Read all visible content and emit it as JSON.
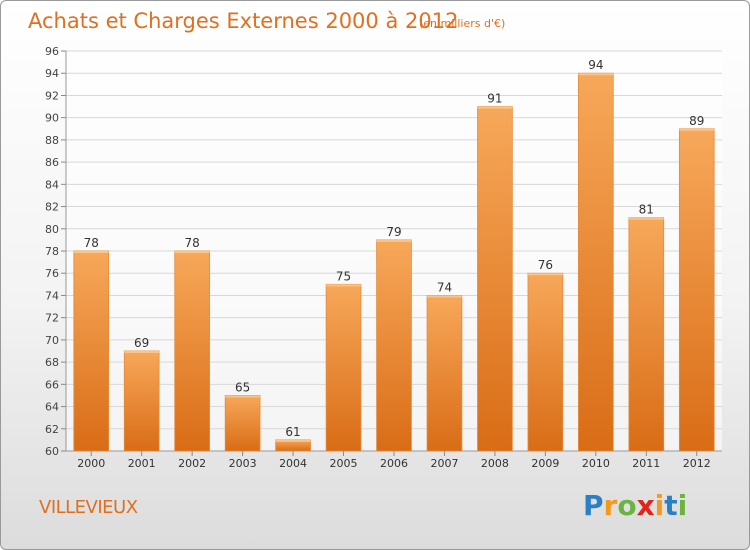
{
  "title": "Achats et Charges Externes 2000 à 2012",
  "subtitle": "(en milliers d'€)",
  "location": "VILLEVIEUX",
  "logo": {
    "letters": [
      "P",
      "r",
      "o",
      "x",
      "i",
      "t",
      "i"
    ],
    "colors": [
      "#2b7fc4",
      "#f39a1e",
      "#6cb33f",
      "#e2231a",
      "#f39a1e",
      "#2b7fc4",
      "#6cb33f"
    ]
  },
  "colors": {
    "bar_top": "#f7a85a",
    "bar_bottom": "#d96c16",
    "text_accent": "#e07020",
    "grid": "#d8d8d8"
  },
  "chart_data": {
    "type": "bar",
    "categories": [
      "2000",
      "2001",
      "2002",
      "2003",
      "2004",
      "2005",
      "2006",
      "2007",
      "2008",
      "2009",
      "2010",
      "2011",
      "2012"
    ],
    "values": [
      78,
      69,
      78,
      65,
      61,
      75,
      79,
      74,
      91,
      76,
      94,
      81,
      89
    ],
    "ylim": [
      60,
      96
    ],
    "yticks": [
      60,
      62,
      64,
      66,
      68,
      70,
      72,
      74,
      76,
      78,
      80,
      82,
      84,
      86,
      88,
      90,
      92,
      94,
      96
    ],
    "grid": true,
    "data_labels": true
  }
}
